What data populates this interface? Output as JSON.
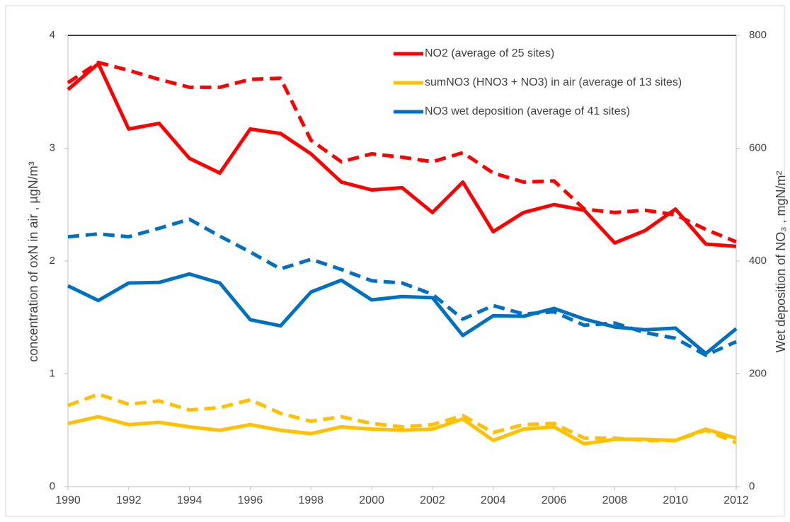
{
  "chart_data": {
    "type": "line",
    "y_label": "concentration of oxN  in air , µgN/m³",
    "y2_label": "Wet deposition of NO₃ , mgN/m²",
    "x": [
      1990,
      1991,
      1992,
      1993,
      1994,
      1995,
      1996,
      1997,
      1998,
      1999,
      2000,
      2001,
      2002,
      2003,
      2004,
      2005,
      2006,
      2007,
      2008,
      2009,
      2010,
      2011,
      2012
    ],
    "xlim": [
      1990,
      2012
    ],
    "xticks": [
      1990,
      1992,
      1994,
      1996,
      1998,
      2000,
      2002,
      2004,
      2006,
      2008,
      2010,
      2012
    ],
    "ylim": [
      0,
      4
    ],
    "yticks": [
      0,
      1,
      2,
      3,
      4
    ],
    "y2lim": [
      0,
      800
    ],
    "y2ticks": [
      0,
      200,
      400,
      600,
      800
    ],
    "legend": "top-right",
    "series": [
      {
        "name": "NO2 (average of 25 sites)",
        "color": "#ff0000",
        "values": [
          3.52,
          3.75,
          3.17,
          3.22,
          2.91,
          2.78,
          3.17,
          3.13,
          2.95,
          2.7,
          2.63,
          2.65,
          2.43,
          2.7,
          2.26,
          2.43,
          2.5,
          2.45,
          2.16,
          2.27,
          2.46,
          2.15,
          2.13
        ]
      },
      {
        "color": "#ff0000",
        "dashed": true,
        "values": [
          3.58,
          3.76,
          3.69,
          3.61,
          3.54,
          3.54,
          3.61,
          3.62,
          3.07,
          2.88,
          2.95,
          2.92,
          2.88,
          2.96,
          2.78,
          2.7,
          2.71,
          2.46,
          2.43,
          2.45,
          2.41,
          2.28,
          2.17
        ]
      },
      {
        "name": "sumNO3 (HNO3 + NO3) in air (average of 13 sites)",
        "color": "#ffc000",
        "values": [
          0.56,
          0.62,
          0.55,
          0.57,
          0.53,
          0.5,
          0.55,
          0.5,
          0.47,
          0.53,
          0.51,
          0.5,
          0.51,
          0.6,
          0.41,
          0.51,
          0.53,
          0.38,
          0.42,
          0.42,
          0.41,
          0.51,
          0.43
        ]
      },
      {
        "color": "#ffc000",
        "dashed": true,
        "values": [
          0.72,
          0.82,
          0.73,
          0.76,
          0.68,
          0.7,
          0.77,
          0.65,
          0.58,
          0.62,
          0.56,
          0.53,
          0.55,
          0.63,
          0.48,
          0.55,
          0.56,
          0.43,
          0.43,
          0.41,
          0.41,
          0.5,
          0.39
        ]
      },
      {
        "name": "NO3  wet deposition (average of 41 sites)",
        "color": "#0070c0",
        "axis": "y2",
        "values": [
          356,
          330,
          361,
          362,
          377,
          361,
          296,
          285,
          345,
          366,
          331,
          337,
          335,
          268,
          303,
          302,
          316,
          297,
          283,
          278,
          281,
          236,
          280
        ]
      },
      {
        "color": "#0070c0",
        "dashed": true,
        "axis": "y2",
        "values": [
          443,
          448,
          443,
          458,
          474,
          444,
          416,
          386,
          403,
          385,
          365,
          361,
          341,
          297,
          321,
          306,
          310,
          286,
          290,
          273,
          263,
          233,
          257
        ]
      }
    ]
  }
}
